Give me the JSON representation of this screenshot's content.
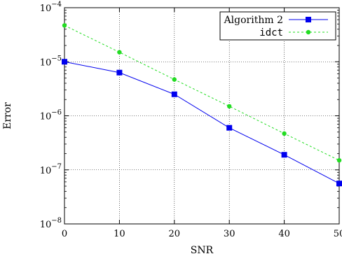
{
  "chart_data": {
    "type": "line",
    "title": "",
    "xlabel": "SNR",
    "ylabel": "Error",
    "yscale": "log",
    "xlim": [
      0,
      50
    ],
    "ylim": [
      1e-08,
      0.0001
    ],
    "xticks": [
      0,
      10,
      20,
      30,
      40,
      50
    ],
    "xtick_labels": [
      "0",
      "10",
      "20",
      "30",
      "40",
      "50"
    ],
    "yticks": [
      1e-08,
      1e-07,
      1e-06,
      1e-05,
      0.0001
    ],
    "ytick_labels": [
      {
        "base": "10",
        "exp": "−8"
      },
      {
        "base": "10",
        "exp": "−7"
      },
      {
        "base": "10",
        "exp": "−6"
      },
      {
        "base": "10",
        "exp": "−5"
      },
      {
        "base": "10",
        "exp": "−4"
      }
    ],
    "grid": true,
    "legend_position": "top-right",
    "x": [
      0,
      10,
      20,
      30,
      40,
      50
    ],
    "series": [
      {
        "name": "Algorithm 2",
        "color": "#0000ee",
        "marker": "square",
        "dash": "solid",
        "values": [
          1e-05,
          6.3e-06,
          2.5e-06,
          6e-07,
          1.9e-07,
          5.6e-08
        ]
      },
      {
        "name": "idct",
        "color": "#22dd22",
        "marker": "circle",
        "dash": "dashed",
        "values": [
          4.7e-05,
          1.5e-05,
          4.7e-06,
          1.5e-06,
          4.7e-07,
          1.5e-07
        ]
      }
    ]
  }
}
